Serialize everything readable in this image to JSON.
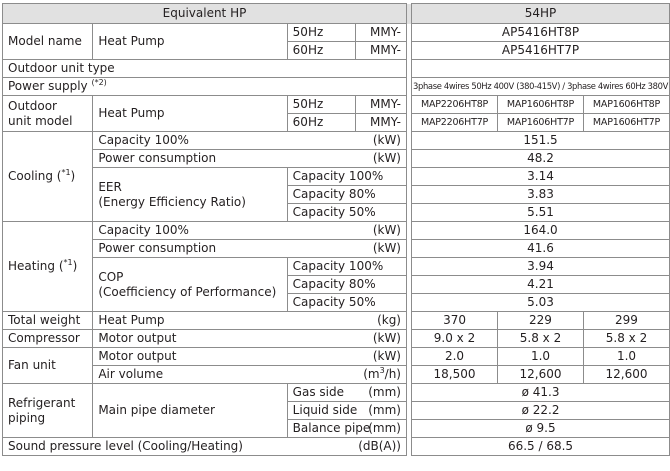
{
  "header": {
    "label": "Equivalent HP",
    "model": "54HP"
  },
  "model_name": {
    "label": "Model name",
    "sub": "Heat Pump",
    "rows": [
      {
        "hz": "50Hz",
        "prefix": "MMY-",
        "value": "AP5416HT8P"
      },
      {
        "hz": "60Hz",
        "prefix": "MMY-",
        "value": "AP5416HT7P"
      }
    ]
  },
  "outdoor_unit_type": {
    "label": "Outdoor unit type"
  },
  "power_supply": {
    "label": "Power supply",
    "note": "(*2)",
    "value": "3phase 4wires 50Hz 400V (380-415V) / 3phase 4wires 60Hz 380V"
  },
  "outdoor_unit_model": {
    "label": "Outdoor unit model",
    "sub": "Heat Pump",
    "rows": [
      {
        "hz": "50Hz",
        "prefix": "MMY-",
        "values": [
          "MAP2206HT8P",
          "MAP1606HT8P",
          "MAP1606HT8P"
        ]
      },
      {
        "hz": "60Hz",
        "prefix": "MMY-",
        "values": [
          "MAP2206HT7P",
          "MAP1606HT7P",
          "MAP1606HT7P"
        ]
      }
    ]
  },
  "cooling": {
    "label": "Cooling (*1)",
    "capacity": {
      "label": "Capacity 100%",
      "unit": "(kW)",
      "value": "151.5"
    },
    "power": {
      "label": "Power consumption",
      "unit": "(kW)",
      "value": "48.2"
    },
    "eer": {
      "label": "EER (Energy Efficiency Ratio)",
      "rows": [
        {
          "label": "Capacity 100%",
          "value": "3.14"
        },
        {
          "label": "Capacity 80%",
          "value": "3.83"
        },
        {
          "label": "Capacity 50%",
          "value": "5.51"
        }
      ]
    }
  },
  "heating": {
    "label": "Heating (*1)",
    "capacity": {
      "label": "Capacity 100%",
      "unit": "(kW)",
      "value": "164.0"
    },
    "power": {
      "label": "Power consumption",
      "unit": "(kW)",
      "value": "41.6"
    },
    "cop": {
      "label": "COP (Coefficiency of Performance)",
      "rows": [
        {
          "label": "Capacity 100%",
          "value": "3.94"
        },
        {
          "label": "Capacity 80%",
          "value": "4.21"
        },
        {
          "label": "Capacity 50%",
          "value": "5.03"
        }
      ]
    }
  },
  "total_weight": {
    "label": "Total weight",
    "sub": "Heat Pump",
    "unit": "(kg)",
    "values": [
      "370",
      "229",
      "299"
    ]
  },
  "compressor": {
    "label": "Compressor",
    "sub": "Motor output",
    "unit": "(kW)",
    "values": [
      "9.0 x 2",
      "5.8 x 2",
      "5.8 x 2"
    ]
  },
  "fan_unit": {
    "label": "Fan unit",
    "motor": {
      "label": "Motor output",
      "unit": "(kW)",
      "values": [
        "2.0",
        "1.0",
        "1.0"
      ]
    },
    "air": {
      "label": "Air volume",
      "unit": "(m3/h)",
      "values": [
        "18,500",
        "12,600",
        "12,600"
      ]
    }
  },
  "refrigerant": {
    "label": "Refrigerant piping",
    "sub": "Main pipe diameter",
    "rows": [
      {
        "label": "Gas side",
        "unit": "(mm)",
        "value": "ø 41.3"
      },
      {
        "label": "Liquid side",
        "unit": "(mm)",
        "value": "ø 22.2"
      },
      {
        "label": "Balance pipe",
        "unit": "(mm)",
        "value": "ø 9.5"
      }
    ]
  },
  "sound": {
    "label": "Sound pressure level (Cooling/Heating)",
    "unit": "(dB(A))",
    "value": "66.5 / 68.5"
  }
}
